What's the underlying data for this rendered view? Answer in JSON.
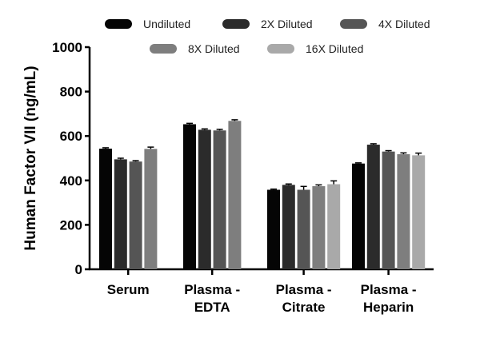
{
  "chart_data": {
    "type": "bar",
    "title": "",
    "xlabel": "",
    "ylabel": "Human Factor VII (ng/mL)",
    "ylim": [
      0,
      1000
    ],
    "yticks": [
      "0",
      "200",
      "400",
      "600",
      "800",
      "1000"
    ],
    "grid": false,
    "legend_position": "top",
    "categories": [
      [
        "Serum"
      ],
      [
        "Plasma -",
        "EDTA"
      ],
      [
        "Plasma -",
        "Citrate"
      ],
      [
        "Plasma -",
        "Heparin"
      ]
    ],
    "series": [
      {
        "name": "Undiluted",
        "color": "#050505",
        "values": [
          543,
          653,
          358,
          476
        ],
        "errors": [
          4,
          4,
          3,
          3
        ]
      },
      {
        "name": "2X Diluted",
        "color": "#2b2b2b",
        "values": [
          495,
          628,
          380,
          561
        ],
        "errors": [
          5,
          4,
          4,
          4
        ]
      },
      {
        "name": "4X Diluted",
        "color": "#555555",
        "values": [
          485,
          625,
          358,
          530
        ],
        "errors": [
          4,
          5,
          15,
          4
        ]
      },
      {
        "name": "8X Diluted",
        "color": "#7e7e7e",
        "values": [
          542,
          668,
          374,
          518
        ],
        "errors": [
          8,
          5,
          6,
          6
        ]
      },
      {
        "name": "16X Diluted",
        "color": "#a9a9a9",
        "values": [
          null,
          null,
          383,
          513
        ],
        "errors": [
          null,
          null,
          15,
          10
        ]
      }
    ]
  }
}
